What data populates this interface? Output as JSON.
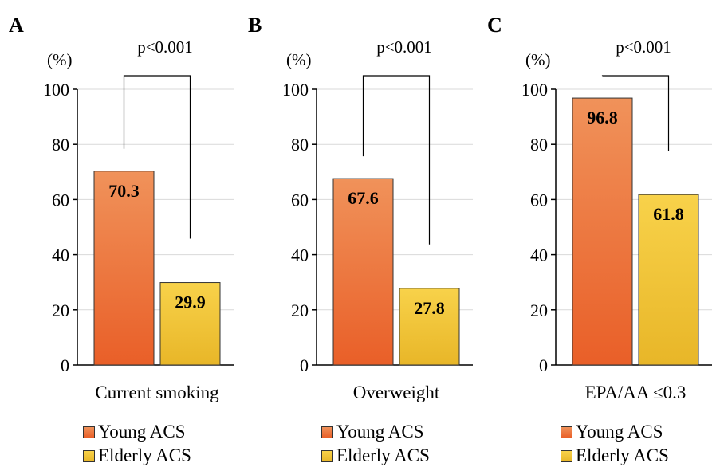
{
  "chart_data": [
    {
      "type": "bar",
      "panel": "A",
      "unit": "(%)",
      "ylim": [
        0,
        100
      ],
      "yticks": [
        0,
        20,
        40,
        60,
        80,
        100
      ],
      "grid": true,
      "categories": [
        "Young ACS",
        "Elderly ACS"
      ],
      "values": [
        70.3,
        29.9
      ],
      "value_labels": [
        "70.3",
        "29.9"
      ],
      "xlabel": "Current smoking",
      "annotation": "p<0.001"
    },
    {
      "type": "bar",
      "panel": "B",
      "unit": "(%)",
      "ylim": [
        0,
        100
      ],
      "yticks": [
        0,
        20,
        40,
        60,
        80,
        100
      ],
      "grid": true,
      "categories": [
        "Young ACS",
        "Elderly ACS"
      ],
      "values": [
        67.6,
        27.8
      ],
      "value_labels": [
        "67.6",
        "27.8"
      ],
      "xlabel": "Overweight",
      "annotation": "p<0.001"
    },
    {
      "type": "bar",
      "panel": "C",
      "unit": "(%)",
      "ylim": [
        0,
        100
      ],
      "yticks": [
        0,
        20,
        40,
        60,
        80,
        100
      ],
      "grid": true,
      "categories": [
        "Young ACS",
        "Elderly ACS"
      ],
      "values": [
        96.8,
        61.8
      ],
      "value_labels": [
        "96.8",
        "61.8"
      ],
      "xlabel": "EPA/AA ≤0.3",
      "annotation": "p<0.001"
    }
  ],
  "legend": {
    "young_label": "Young ACS",
    "elderly_label": "Elderly ACS"
  },
  "colors": {
    "young_top": "#f0925a",
    "young_bottom": "#e95f28",
    "elderly_top": "#f8d24a",
    "elderly_bottom": "#e8b628",
    "grid": "#d9d9d9"
  }
}
